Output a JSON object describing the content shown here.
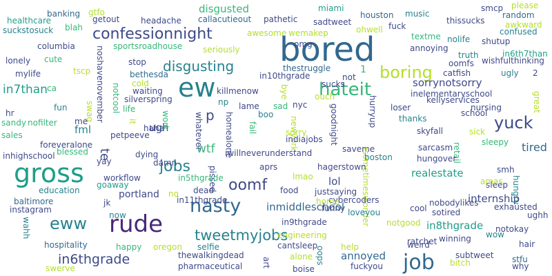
{
  "words": [
    {
      "text": "bored",
      "color": "#31688e"
    },
    {
      "text": "ew",
      "color": "#26828e"
    },
    {
      "text": "gross",
      "color": "#1f9e89"
    },
    {
      "text": "rude",
      "color": "#482878"
    },
    {
      "text": "nasty",
      "color": "#31688e"
    },
    {
      "text": "confessionnight",
      "color": "#3e4989"
    },
    {
      "text": "boring",
      "color": "#b5de2b"
    },
    {
      "text": "job",
      "color": "#31688e"
    },
    {
      "text": "yuck",
      "color": "#3e4989"
    },
    {
      "text": "hateit",
      "color": "#35b779"
    },
    {
      "text": "disgusting",
      "color": "#26828e"
    },
    {
      "text": "jobs",
      "color": "#26828e"
    },
    {
      "text": "oomf",
      "color": "#3e4989"
    },
    {
      "text": "eww",
      "color": "#26828e"
    },
    {
      "text": "tweetmyjobs",
      "color": "#26828e"
    },
    {
      "text": "in6thgrade",
      "color": "#3e4989"
    },
    {
      "text": "te",
      "color": "#3e4989"
    },
    {
      "text": "p",
      "color": "#3e4989"
    },
    {
      "text": "fml",
      "color": "#26828e"
    },
    {
      "text": "disgusted",
      "color": "#35b779"
    },
    {
      "text": "sorrynotsorry",
      "color": "#3e4989"
    },
    {
      "text": "in7than",
      "color": "#1f9e89"
    },
    {
      "text": "realestate",
      "color": "#1f9e89"
    },
    {
      "text": "wtf",
      "color": "#35b779"
    },
    {
      "text": "internship",
      "color": "#3e4989"
    },
    {
      "text": "inmiddleschool",
      "color": "#31688e"
    },
    {
      "text": "in8thgrade",
      "color": "#1f9e89"
    },
    {
      "text": "lol",
      "color": "#3e4989"
    },
    {
      "text": "annoyed",
      "color": "#31688e"
    },
    {
      "text": "tired",
      "color": "#31688e"
    },
    {
      "text": "ugh",
      "color": "#3e4989"
    },
    {
      "text": "portland",
      "color": "#3e4989"
    },
    {
      "text": "in10thgrade",
      "color": "#3e4989"
    },
    {
      "text": "inelementaryschool",
      "color": "#3e4989"
    },
    {
      "text": "in6th7than",
      "color": "#1f9e89"
    },
    {
      "text": "thestruggle",
      "color": "#31688e"
    },
    {
      "text": "pathetic",
      "color": "#3e4989"
    },
    {
      "text": "callacutieout",
      "color": "#31688e"
    },
    {
      "text": "headache",
      "color": "#3e4989"
    },
    {
      "text": "miami",
      "color": "#1f9e89"
    },
    {
      "text": "houston",
      "color": "#31688e"
    },
    {
      "text": "music",
      "color": "#26828e"
    },
    {
      "text": "thissucks",
      "color": "#3e4989"
    },
    {
      "text": "smcp",
      "color": "#3e4989"
    },
    {
      "text": "please",
      "color": "#b5de2b"
    },
    {
      "text": "random",
      "color": "#31688e"
    },
    {
      "text": "awkward",
      "color": "#b5de2b"
    },
    {
      "text": "confused",
      "color": "#26828e"
    },
    {
      "text": "banking",
      "color": "#31688e"
    },
    {
      "text": "healthcare",
      "color": "#1f9e89"
    },
    {
      "text": "suckstosuck",
      "color": "#26828e"
    },
    {
      "text": "blah",
      "color": "#35b779"
    },
    {
      "text": "getout",
      "color": "#3e4989"
    },
    {
      "text": "gtfo",
      "color": "#b5de2b"
    },
    {
      "text": "sadtweet",
      "color": "#3e4989"
    },
    {
      "text": "fuck",
      "color": "#3e4989"
    },
    {
      "text": "ohwell",
      "color": "#b5de2b"
    },
    {
      "text": "textme",
      "color": "#35b779"
    },
    {
      "text": "nolife",
      "color": "#26828e"
    },
    {
      "text": "shutup",
      "color": "#3e4989"
    },
    {
      "text": "truth",
      "color": "#26828e"
    },
    {
      "text": "oomfs",
      "color": "#3e4989"
    },
    {
      "text": "wishfulthinking",
      "color": "#3e4989"
    },
    {
      "text": "awesome",
      "color": "#b5de2b"
    },
    {
      "text": "wemakep",
      "color": "#b5de2b"
    },
    {
      "text": "sportsroadhouse",
      "color": "#35b779"
    },
    {
      "text": "columbia",
      "color": "#3e4989"
    },
    {
      "text": "seriously",
      "color": "#b5de2b"
    },
    {
      "text": "annoying",
      "color": "#3e4989"
    },
    {
      "text": "lonely",
      "color": "#3e4989"
    },
    {
      "text": "cute",
      "color": "#35b779"
    },
    {
      "text": "noshavenovember",
      "color": "#3e4989"
    },
    {
      "text": "stop",
      "color": "#3e4989"
    },
    {
      "text": "bethesda",
      "color": "#31688e"
    },
    {
      "text": "mylife",
      "color": "#3e4989"
    },
    {
      "text": "tscp",
      "color": "#b5de2b"
    },
    {
      "text": "cold",
      "color": "#b5de2b"
    },
    {
      "text": "notcool",
      "color": "#35b779"
    },
    {
      "text": "catfish",
      "color": "#3e4989"
    },
    {
      "text": "ugly",
      "color": "#26828e"
    },
    {
      "text": "2",
      "color": "#3e4989"
    },
    {
      "text": "waiting",
      "color": "#3e4989"
    },
    {
      "text": "silverspring",
      "color": "#3e4989"
    },
    {
      "text": "killmenow",
      "color": "#3e4989"
    },
    {
      "text": "sucks",
      "color": "#3e4989"
    },
    {
      "text": "not",
      "color": "#3e4989"
    },
    {
      "text": "bye",
      "color": "#b5de2b"
    },
    {
      "text": "ouch",
      "color": "#b5de2b"
    },
    {
      "text": "kellyservices",
      "color": "#3e4989"
    },
    {
      "text": "nursing",
      "color": "#3e4989"
    },
    {
      "text": "great",
      "color": "#b5de2b"
    },
    {
      "text": "school",
      "color": "#3e4989"
    },
    {
      "text": "ca",
      "color": "#35b779"
    },
    {
      "text": "swag",
      "color": "#b5de2b"
    },
    {
      "text": "fun",
      "color": "#26828e"
    },
    {
      "text": "life",
      "color": "#35b779"
    },
    {
      "text": "np",
      "color": "#26828e"
    },
    {
      "text": "lame",
      "color": "#3e4989"
    },
    {
      "text": "boo",
      "color": "#26828e"
    },
    {
      "text": "sad",
      "color": "#35b779"
    },
    {
      "text": "nyc",
      "color": "#3e4989"
    },
    {
      "text": "loser",
      "color": "#3e4989"
    },
    {
      "text": "hr",
      "color": "#3e4989"
    },
    {
      "text": "me",
      "color": "#3e4989"
    },
    {
      "text": "sandy",
      "color": "#35b779"
    },
    {
      "text": "nofilter",
      "color": "#35b779"
    },
    {
      "text": "haha",
      "color": "#3e4989"
    },
    {
      "text": "work",
      "color": "#35b779"
    },
    {
      "text": "whatever",
      "color": "#3e4989"
    },
    {
      "text": "homealone",
      "color": "#3e4989"
    },
    {
      "text": "fail",
      "color": "#35b779"
    },
    {
      "text": "newyork",
      "color": "#b5de2b"
    },
    {
      "text": "sorry",
      "color": "#b5de2b"
    },
    {
      "text": "goodnight",
      "color": "#3e4989"
    },
    {
      "text": "hurryup",
      "color": "#3e4989"
    },
    {
      "text": "thanks",
      "color": "#26828e"
    },
    {
      "text": "sick",
      "color": "#b5de2b"
    },
    {
      "text": "skyfall",
      "color": "#3e4989"
    },
    {
      "text": "sales",
      "color": "#35b779"
    },
    {
      "text": "it",
      "color": "#b5de2b"
    },
    {
      "text": "petpeeve",
      "color": "#3e4989"
    },
    {
      "text": "indiajobs",
      "color": "#3e4989"
    },
    {
      "text": "sarcasm",
      "color": "#3e4989"
    },
    {
      "text": "sleepy",
      "color": "#35b779"
    },
    {
      "text": "foreveralone",
      "color": "#3e4989"
    },
    {
      "text": "blessed",
      "color": "#35b779"
    },
    {
      "text": "inhighschool",
      "color": "#3e4989"
    },
    {
      "text": "dying",
      "color": "#3e4989"
    },
    {
      "text": "iwillneverunderstand",
      "color": "#3e4989"
    },
    {
      "text": "saveme",
      "color": "#3e4989"
    },
    {
      "text": "isometimeswonder",
      "color": "#b5de2b"
    },
    {
      "text": "retail",
      "color": "#35b779"
    },
    {
      "text": "hungover",
      "color": "#3e4989"
    },
    {
      "text": "yay",
      "color": "#3e4989"
    },
    {
      "text": "damn",
      "color": "#3e4989"
    },
    {
      "text": "pissed",
      "color": "#3e4989"
    },
    {
      "text": "aprs",
      "color": "#3e4989"
    },
    {
      "text": "boston",
      "color": "#26828e"
    },
    {
      "text": "smh",
      "color": "#3e4989"
    },
    {
      "text": "hungry",
      "color": "#26828e"
    },
    {
      "text": "sleep",
      "color": "#3e4989"
    },
    {
      "text": "goaway",
      "color": "#1f9e89"
    },
    {
      "text": "workflow",
      "color": "#3e4989"
    },
    {
      "text": "in5thgrade",
      "color": "#35b779"
    },
    {
      "text": "education",
      "color": "#26828e"
    },
    {
      "text": "hagerstown",
      "color": "#3e4989"
    },
    {
      "text": "lmao",
      "color": "#b5de2b"
    },
    {
      "text": "amas",
      "color": "#b5de2b"
    },
    {
      "text": "justsaying",
      "color": "#3e4989"
    },
    {
      "text": "dead",
      "color": "#3e4989"
    },
    {
      "text": "food",
      "color": "#3e4989"
    },
    {
      "text": "baltimore",
      "color": "#31688e"
    },
    {
      "text": "in11thgrade",
      "color": "#3e4989"
    },
    {
      "text": "jk",
      "color": "#3e4989"
    },
    {
      "text": "no",
      "color": "#b5de2b"
    },
    {
      "text": "cybercoders",
      "color": "#3e4989"
    },
    {
      "text": "nobodylikes",
      "color": "#3e4989"
    },
    {
      "text": "home",
      "color": "#b5de2b"
    },
    {
      "text": "instagram",
      "color": "#3e4989"
    },
    {
      "text": "funny",
      "color": "#3e4989"
    },
    {
      "text": "loveyou",
      "color": "#26828e"
    },
    {
      "text": "cool",
      "color": "#3e4989"
    },
    {
      "text": "exhausted",
      "color": "#3e4989"
    },
    {
      "text": "sotired",
      "color": "#3e4989"
    },
    {
      "text": "ughh",
      "color": "#3e4989"
    },
    {
      "text": "wahh",
      "color": "#26828e"
    },
    {
      "text": "now",
      "color": "#26828e"
    },
    {
      "text": "in9thgrade",
      "color": "#3e4989"
    },
    {
      "text": "notgood",
      "color": "#b5de2b"
    },
    {
      "text": "notokay",
      "color": "#3e4989"
    },
    {
      "text": "engineering",
      "color": "#b5de2b"
    },
    {
      "text": "ratchet",
      "color": "#3e4989"
    },
    {
      "text": "wow",
      "color": "#26828e"
    },
    {
      "text": "winning",
      "color": "#3e4989"
    },
    {
      "text": "hospitality",
      "color": "#31688e"
    },
    {
      "text": "happy",
      "color": "#35b779"
    },
    {
      "text": "oregon",
      "color": "#b5de2b"
    },
    {
      "text": "selfie",
      "color": "#26828e"
    },
    {
      "text": "cantsleep",
      "color": "#3e4989"
    },
    {
      "text": "help",
      "color": "#b5de2b"
    },
    {
      "text": "weird",
      "color": "#3e4989"
    },
    {
      "text": "hair",
      "color": "#3e4989"
    },
    {
      "text": "thewalkingdead",
      "color": "#3e4989"
    },
    {
      "text": "oops",
      "color": "#26828e"
    },
    {
      "text": "subtweet",
      "color": "#3e4989"
    },
    {
      "text": "stfu",
      "color": "#31688e"
    },
    {
      "text": "pharmaceutical",
      "color": "#3e4989"
    },
    {
      "text": "alone",
      "color": "#b5de2b"
    },
    {
      "text": "fuckyou",
      "color": "#3e4989"
    },
    {
      "text": "bitch",
      "color": "#b5de2b"
    },
    {
      "text": "why",
      "color": "#3e4989"
    },
    {
      "text": "swerve",
      "color": "#b5de2b"
    },
    {
      "text": "art",
      "color": "#3e4989"
    },
    {
      "text": "boise",
      "color": "#3e4989"
    },
    {
      "text": "1",
      "color": "#35b779"
    },
    {
      "text": "omg",
      "color": "#3e4989"
    }
  ]
}
